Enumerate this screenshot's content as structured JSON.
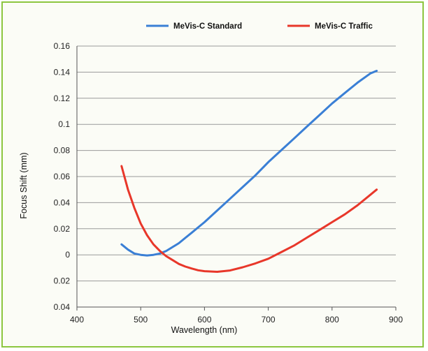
{
  "chart_data": {
    "type": "line",
    "title": "",
    "xlabel": "Wavelength (nm)",
    "ylabel": "Focus Shift (mm)",
    "xlim": [
      400,
      900
    ],
    "ylim": [
      -0.04,
      0.16
    ],
    "x_ticks": [
      400,
      500,
      600,
      700,
      800,
      900
    ],
    "x_tick_labels": [
      "400",
      "500",
      "600",
      "700",
      "800",
      "900"
    ],
    "y_ticks": [
      -0.04,
      -0.02,
      0,
      0.02,
      0.04,
      0.06,
      0.08,
      0.1,
      0.12,
      0.14,
      0.16
    ],
    "y_tick_labels": [
      "0.04",
      "0.02",
      "0",
      "0.02",
      "0.04",
      "0.06",
      "0.08",
      "0.1",
      "0.12",
      "0.14",
      "0.16"
    ],
    "grid": "horizontal",
    "legend_position": "top",
    "series": [
      {
        "name": "MeVis-C Standard",
        "color": "#3a7fd5",
        "x": [
          470,
          480,
          490,
          500,
          510,
          520,
          530,
          540,
          550,
          560,
          570,
          580,
          590,
          600,
          620,
          640,
          660,
          680,
          700,
          720,
          740,
          760,
          780,
          800,
          820,
          840,
          860,
          870
        ],
        "y": [
          0.008,
          0.004,
          0.001,
          0.0,
          -0.0005,
          0.0,
          0.001,
          0.003,
          0.006,
          0.009,
          0.013,
          0.017,
          0.021,
          0.025,
          0.034,
          0.043,
          0.052,
          0.061,
          0.071,
          0.08,
          0.089,
          0.098,
          0.107,
          0.116,
          0.124,
          0.132,
          0.139,
          0.141
        ]
      },
      {
        "name": "MeVis-C Traffic",
        "color": "#e8372a",
        "x": [
          470,
          480,
          490,
          500,
          510,
          520,
          530,
          540,
          550,
          560,
          570,
          580,
          590,
          600,
          620,
          640,
          660,
          680,
          700,
          720,
          740,
          760,
          780,
          800,
          820,
          840,
          860,
          870
        ],
        "y": [
          0.068,
          0.05,
          0.036,
          0.024,
          0.015,
          0.008,
          0.003,
          -0.001,
          -0.004,
          -0.007,
          -0.009,
          -0.0105,
          -0.0118,
          -0.0125,
          -0.013,
          -0.012,
          -0.0095,
          -0.0065,
          -0.003,
          0.002,
          0.007,
          0.013,
          0.019,
          0.025,
          0.031,
          0.038,
          0.046,
          0.05
        ]
      }
    ]
  }
}
